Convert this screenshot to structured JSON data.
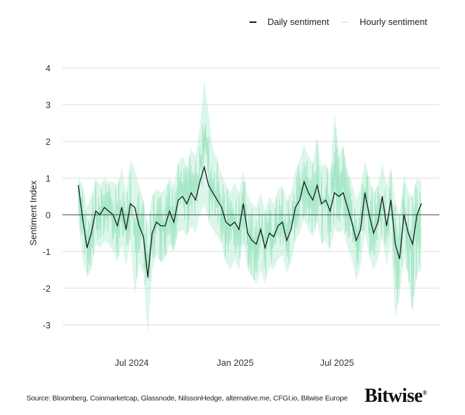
{
  "chart_data": {
    "type": "line",
    "title": "",
    "xlabel": "",
    "ylabel": "Sentiment Index",
    "ylim": [
      -3,
      4
    ],
    "yticks": [
      "4",
      "3",
      "2",
      "1",
      "0",
      "-1",
      "-2",
      "-3"
    ],
    "xticks": [
      {
        "label": "Jul 2024",
        "date": "2024-07-01"
      },
      {
        "label": "Jan 2025",
        "date": "2025-01-01"
      },
      {
        "label": "Jul 2025",
        "date": "2025-07-01"
      }
    ],
    "x_start": "2024-03-28",
    "x_end": "2025-11-28",
    "grid": true,
    "legend": {
      "placement": "top-right",
      "entries": [
        "Daily sentiment",
        "Hourly sentiment"
      ]
    },
    "colors": {
      "daily": "#1a1a1a",
      "hourly": "#9fe6c3",
      "grid": "#dddddd",
      "zero": "#444444"
    },
    "series": [
      {
        "name": "Daily sentiment",
        "values": [
          0.8,
          -0.1,
          -0.9,
          -0.5,
          0.1,
          0.0,
          0.2,
          0.1,
          0.0,
          -0.3,
          0.2,
          -0.4,
          0.3,
          0.2,
          -0.3,
          -0.6,
          -1.7,
          -0.5,
          -0.2,
          -0.3,
          -0.3,
          0.1,
          -0.2,
          0.4,
          0.5,
          0.3,
          0.6,
          0.4,
          0.9,
          1.3,
          0.8,
          0.6,
          0.4,
          0.2,
          -0.2,
          -0.3,
          -0.2,
          -0.4,
          0.3,
          -0.5,
          -0.7,
          -0.8,
          -0.4,
          -0.9,
          -0.5,
          -0.6,
          -0.3,
          -0.2,
          -0.7,
          -0.4,
          0.2,
          0.4,
          0.9,
          0.6,
          0.4,
          0.8,
          0.3,
          0.4,
          0.1,
          0.6,
          0.5,
          0.6,
          0.2,
          -0.2,
          -0.7,
          -0.4,
          0.6,
          0.0,
          -0.5,
          -0.2,
          0.5,
          -0.3,
          0.4,
          -0.8,
          -1.2,
          0.0,
          -0.5,
          -0.8,
          0.0,
          0.3
        ]
      },
      {
        "name": "Hourly sentiment",
        "high": [
          1.0,
          0.8,
          0.2,
          0.5,
          1.0,
          0.8,
          1.0,
          0.9,
          0.9,
          0.8,
          1.3,
          0.6,
          1.5,
          1.2,
          0.8,
          0.4,
          -0.3,
          0.5,
          0.7,
          0.6,
          0.7,
          1.0,
          0.8,
          1.4,
          1.6,
          1.3,
          1.8,
          1.6,
          2.4,
          3.7,
          2.8,
          1.8,
          1.5,
          1.1,
          0.8,
          0.6,
          0.9,
          0.6,
          1.2,
          0.5,
          0.3,
          0.2,
          0.6,
          0.1,
          0.5,
          0.3,
          0.7,
          0.8,
          0.4,
          0.6,
          1.2,
          1.5,
          1.9,
          1.6,
          1.4,
          2.1,
          1.3,
          1.4,
          1.1,
          2.8,
          1.6,
          1.9,
          1.2,
          0.9,
          0.4,
          0.7,
          1.5,
          1.0,
          0.6,
          0.8,
          1.4,
          0.8,
          1.3,
          0.4,
          0.0,
          1.1,
          0.6,
          0.5,
          1.0,
          0.9
        ],
        "low": [
          -0.2,
          -1.2,
          -1.7,
          -1.5,
          -0.8,
          -0.9,
          -0.7,
          -0.8,
          -1.0,
          -1.3,
          -0.8,
          -1.4,
          -0.7,
          -2.2,
          -1.3,
          -1.6,
          -3.3,
          -1.5,
          -1.1,
          -1.3,
          -1.2,
          -0.8,
          -1.0,
          -0.5,
          -0.4,
          -0.6,
          -0.3,
          -0.5,
          0.0,
          0.3,
          -0.2,
          -0.4,
          -0.6,
          -0.8,
          -1.3,
          -1.5,
          -1.2,
          -1.5,
          -0.7,
          -1.5,
          -1.7,
          -1.9,
          -1.5,
          -1.9,
          -1.4,
          -1.5,
          -1.2,
          -1.1,
          -1.6,
          -1.3,
          -0.7,
          -0.5,
          -0.1,
          -0.4,
          -0.6,
          -0.2,
          -0.8,
          -0.7,
          -1.0,
          -0.4,
          -0.5,
          -0.4,
          -0.9,
          -1.2,
          -1.8,
          -1.4,
          -0.5,
          -1.1,
          -1.5,
          -1.2,
          -0.6,
          -1.4,
          -0.7,
          -2.8,
          -2.2,
          -1.2,
          -1.7,
          -2.7,
          -1.6,
          -1.5
        ]
      }
    ]
  },
  "footer": {
    "source": "Source: Bloomberg, Coinmarketcap, Glassnode, NilssonHedge, alternative.me, CFGI.io, Bitwise Europe",
    "logo": "Bitwise"
  }
}
